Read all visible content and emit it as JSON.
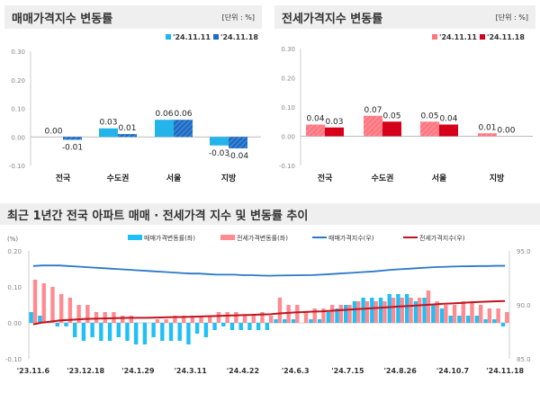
{
  "chart_data": [
    {
      "type": "bar",
      "title": "매매가격지수 변동률",
      "unit": "[단위 : %]",
      "categories": [
        "전국",
        "수도권",
        "서울",
        "지방"
      ],
      "series": [
        {
          "name": "'24.11.11",
          "values": [
            0.0,
            0.03,
            0.06,
            -0.03
          ],
          "labels": [
            "0.00",
            "0.03",
            "0.06",
            "-0.03"
          ]
        },
        {
          "name": "'24.11.18",
          "values": [
            -0.01,
            0.01,
            0.06,
            -0.04
          ],
          "labels": [
            "-0.01",
            "0.01",
            "0.06",
            "-0.04"
          ]
        }
      ],
      "ylim": [
        -0.1,
        0.3
      ],
      "yticks": [
        "0.30",
        "0.20",
        "0.10",
        "0.00",
        "-0.10"
      ],
      "colors": [
        "#25b4ea",
        "#1b6cc6"
      ],
      "legend": "top-right"
    },
    {
      "type": "bar",
      "title": "전세가격지수 변동률",
      "unit": "[단위 : %]",
      "categories": [
        "전국",
        "수도권",
        "서울",
        "지방"
      ],
      "series": [
        {
          "name": "'24.11.11",
          "values": [
            0.04,
            0.07,
            0.05,
            0.01
          ],
          "labels": [
            "0.04",
            "0.07",
            "0.05",
            "0.01"
          ]
        },
        {
          "name": "'24.11.18",
          "values": [
            0.03,
            0.05,
            0.04,
            0.0
          ],
          "labels": [
            "0.03",
            "0.05",
            "0.04",
            "0.00"
          ]
        }
      ],
      "ylim": [
        -0.1,
        0.3
      ],
      "yticks": [
        "0.30",
        "0.20",
        "0.10",
        "0.00",
        "-0.10"
      ],
      "colors": [
        "#ff7680",
        "#d7001a"
      ],
      "legend": "top-right"
    },
    {
      "type": "bar+line",
      "title": "최근 1년간 전국 아파트 매매 · 전세가격 지수 및 변동률 추이",
      "left_unit": "(%)",
      "xticks": [
        "'23.11.6",
        "'23.12.18",
        "'24.1.29",
        "'24.3.11",
        "'24.4.22",
        "'24.6.3",
        "'24.7.15",
        "'24.8.26",
        "'24.10.7",
        "'24.11.18"
      ],
      "ylim_left": [
        -0.1,
        0.2
      ],
      "yticks_left": [
        "0.20",
        "0.10",
        "0.00",
        "-0.10"
      ],
      "ylim_right": [
        85.0,
        95.0
      ],
      "yticks_right": [
        "95.0",
        "90.0",
        "85.0"
      ],
      "legend": "top",
      "series": [
        {
          "name": "매매가격변동률(좌)",
          "kind": "bar",
          "color": "#1ec0f5",
          "values": [
            0.03,
            0.02,
            0.0,
            -0.01,
            -0.01,
            -0.04,
            -0.05,
            -0.04,
            -0.05,
            -0.05,
            -0.04,
            -0.05,
            -0.06,
            -0.06,
            -0.04,
            -0.05,
            -0.05,
            -0.05,
            -0.06,
            -0.03,
            -0.04,
            -0.02,
            -0.01,
            -0.02,
            -0.02,
            -0.02,
            -0.02,
            -0.02,
            0.01,
            0.01,
            0.01,
            0.0,
            0.01,
            0.01,
            0.03,
            0.04,
            0.05,
            0.06,
            0.07,
            0.07,
            0.07,
            0.08,
            0.08,
            0.08,
            0.06,
            0.07,
            0.05,
            0.04,
            0.02,
            0.02,
            0.02,
            0.02,
            0.01,
            0.01,
            -0.01
          ]
        },
        {
          "name": "전세가격변동률(좌)",
          "kind": "bar",
          "color": "#ff8a90",
          "values": [
            0.12,
            0.11,
            0.1,
            0.08,
            0.07,
            0.05,
            0.05,
            0.03,
            0.03,
            0.03,
            0.02,
            0.02,
            0.0,
            0.0,
            0.01,
            0.01,
            0.02,
            0.02,
            0.02,
            0.02,
            0.02,
            0.03,
            0.03,
            0.03,
            0.02,
            0.02,
            0.03,
            0.02,
            0.07,
            0.05,
            0.05,
            0.03,
            0.04,
            0.04,
            0.05,
            0.05,
            0.05,
            0.06,
            0.06,
            0.06,
            0.06,
            0.07,
            0.07,
            0.07,
            0.07,
            0.09,
            0.06,
            0.05,
            0.05,
            0.06,
            0.06,
            0.05,
            0.04,
            0.04,
            0.03
          ]
        },
        {
          "name": "매매가격지수(우)",
          "kind": "line",
          "color": "#2a78c8",
          "values": [
            93.6,
            93.65,
            93.65,
            93.65,
            93.6,
            93.55,
            93.5,
            93.45,
            93.4,
            93.35,
            93.3,
            93.25,
            93.2,
            93.15,
            93.1,
            93.05,
            93.0,
            92.95,
            92.9,
            92.9,
            92.85,
            92.8,
            92.8,
            92.8,
            92.75,
            92.75,
            92.72,
            92.7,
            92.72,
            92.73,
            92.74,
            92.75,
            92.76,
            92.8,
            92.85,
            92.9,
            92.95,
            93.0,
            93.05,
            93.1,
            93.18,
            93.25,
            93.3,
            93.35,
            93.4,
            93.45,
            93.5,
            93.52,
            93.55,
            93.57,
            93.58,
            93.6,
            93.6,
            93.62,
            93.62
          ]
        },
        {
          "name": "전세가격지수(우)",
          "kind": "line",
          "color": "#c0141e",
          "values": [
            88.2,
            88.35,
            88.45,
            88.55,
            88.6,
            88.65,
            88.7,
            88.72,
            88.74,
            88.76,
            88.78,
            88.8,
            88.8,
            88.8,
            88.82,
            88.84,
            88.86,
            88.88,
            88.9,
            88.92,
            88.95,
            88.97,
            89.0,
            89.02,
            89.05,
            89.07,
            89.1,
            89.12,
            89.2,
            89.25,
            89.3,
            89.33,
            89.37,
            89.4,
            89.45,
            89.5,
            89.55,
            89.6,
            89.65,
            89.7,
            89.75,
            89.8,
            89.85,
            89.9,
            89.95,
            90.0,
            90.05,
            90.1,
            90.14,
            90.18,
            90.23,
            90.27,
            90.3,
            90.33,
            90.35
          ]
        }
      ]
    }
  ]
}
